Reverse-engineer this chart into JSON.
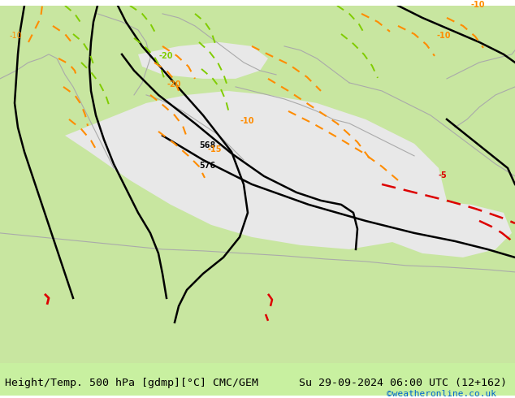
{
  "title_left": "Height/Temp. 500 hPa [gdmp][°C] CMC/GEM",
  "title_right": "Su 29-09-2024 06:00 UTC (12+162)",
  "watermark": "©weatheronline.co.uk",
  "bg_color_land_green": "#c8e6a0",
  "bg_color_land_gray": "#d4d4d4",
  "bg_color_sea": "#e8e8e8",
  "border_color": "#aaaaaa",
  "contour_black_color": "#000000",
  "contour_orange_color": "#ff8c00",
  "contour_green_color": "#80cc00",
  "contour_red_color": "#dd0000",
  "label_568": "568",
  "label_576": "576",
  "label_m10": "-10",
  "label_m15": "-15",
  "label_m20": "-20",
  "label_m5": "-5",
  "bottom_bar_color": "#c8f0a0",
  "title_fontsize": 9.5,
  "watermark_color": "#0066cc",
  "title_bg": "#ffffff"
}
